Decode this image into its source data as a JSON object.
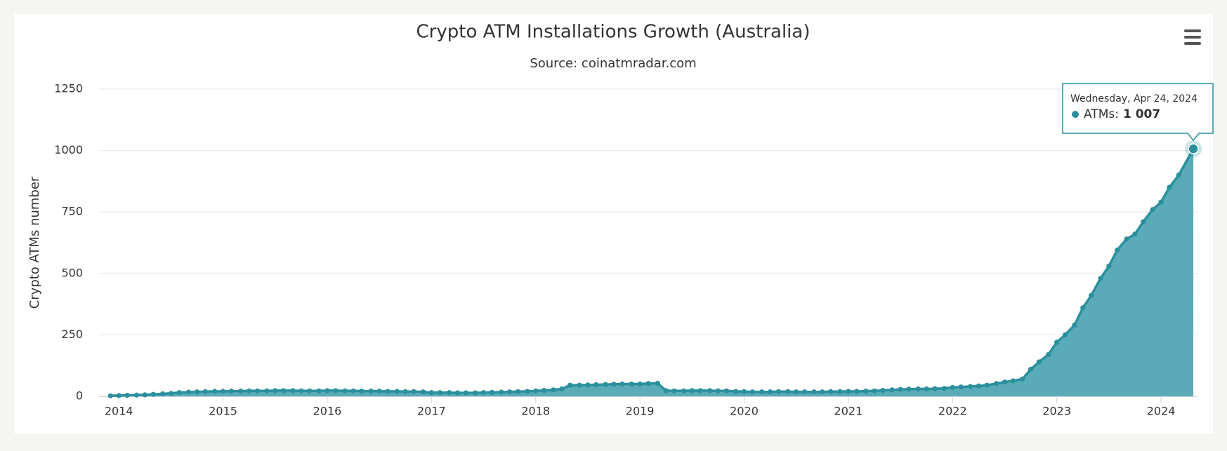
{
  "chart_data": {
    "type": "area",
    "title": "Crypto ATM Installations Growth (Australia)",
    "subtitle": "Source: coinatmradar.com",
    "y_label": "Crypto ATMs number",
    "x": [
      2013.92,
      2014.0,
      2014.08,
      2014.17,
      2014.25,
      2014.33,
      2014.42,
      2014.5,
      2014.58,
      2014.67,
      2014.75,
      2014.83,
      2014.92,
      2015.0,
      2015.08,
      2015.17,
      2015.25,
      2015.33,
      2015.42,
      2015.5,
      2015.58,
      2015.67,
      2015.75,
      2015.83,
      2015.92,
      2016.0,
      2016.08,
      2016.17,
      2016.25,
      2016.33,
      2016.42,
      2016.5,
      2016.58,
      2016.67,
      2016.75,
      2016.83,
      2016.92,
      2017.0,
      2017.08,
      2017.17,
      2017.25,
      2017.33,
      2017.42,
      2017.5,
      2017.58,
      2017.67,
      2017.75,
      2017.83,
      2017.92,
      2018.0,
      2018.08,
      2018.17,
      2018.25,
      2018.33,
      2018.42,
      2018.5,
      2018.58,
      2018.67,
      2018.75,
      2018.83,
      2018.92,
      2019.0,
      2019.08,
      2019.17,
      2019.25,
      2019.33,
      2019.42,
      2019.5,
      2019.58,
      2019.67,
      2019.75,
      2019.83,
      2019.92,
      2020.0,
      2020.08,
      2020.17,
      2020.25,
      2020.33,
      2020.42,
      2020.5,
      2020.58,
      2020.67,
      2020.75,
      2020.83,
      2020.92,
      2021.0,
      2021.08,
      2021.17,
      2021.25,
      2021.33,
      2021.42,
      2021.5,
      2021.58,
      2021.67,
      2021.75,
      2021.83,
      2021.92,
      2022.0,
      2022.08,
      2022.17,
      2022.25,
      2022.33,
      2022.42,
      2022.5,
      2022.58,
      2022.67,
      2022.75,
      2022.83,
      2022.92,
      2023.0,
      2023.08,
      2023.17,
      2023.25,
      2023.33,
      2023.42,
      2023.5,
      2023.58,
      2023.67,
      2023.75,
      2023.83,
      2023.92,
      2024.0,
      2024.08,
      2024.17,
      2024.31
    ],
    "series": [
      {
        "name": "ATMs",
        "color": "#2b8f9c",
        "fill": "#5aabb8",
        "values": [
          2,
          3,
          4,
          5,
          6,
          8,
          10,
          12,
          15,
          17,
          18,
          19,
          20,
          20,
          21,
          21,
          22,
          22,
          22,
          23,
          23,
          23,
          22,
          22,
          22,
          23,
          23,
          22,
          22,
          21,
          21,
          21,
          20,
          20,
          19,
          19,
          18,
          15,
          15,
          15,
          14,
          14,
          14,
          15,
          16,
          17,
          18,
          19,
          20,
          22,
          24,
          26,
          30,
          45,
          45,
          46,
          47,
          48,
          49,
          50,
          50,
          50,
          52,
          53,
          23,
          22,
          22,
          23,
          23,
          23,
          22,
          22,
          20,
          19,
          18,
          18,
          18,
          19,
          19,
          18,
          18,
          18,
          18,
          19,
          19,
          20,
          20,
          21,
          22,
          24,
          26,
          28,
          29,
          30,
          30,
          31,
          32,
          36,
          38,
          40,
          42,
          45,
          52,
          58,
          63,
          70,
          110,
          140,
          170,
          220,
          250,
          290,
          360,
          410,
          480,
          530,
          595,
          640,
          660,
          710,
          760,
          790,
          850,
          900,
          1007
        ]
      }
    ],
    "xlim": [
      2013.81,
      2024.35
    ],
    "xticks": [
      2014,
      2015,
      2016,
      2017,
      2018,
      2019,
      2020,
      2021,
      2022,
      2023,
      2024
    ],
    "ylim": [
      0,
      1250
    ],
    "yticks": [
      0,
      250,
      500,
      750,
      1000,
      1250
    ],
    "grid": true,
    "tooltip": {
      "date": "Wednesday, Apr 24, 2024",
      "text": "ATMs:",
      "value_label": "1 007"
    }
  }
}
